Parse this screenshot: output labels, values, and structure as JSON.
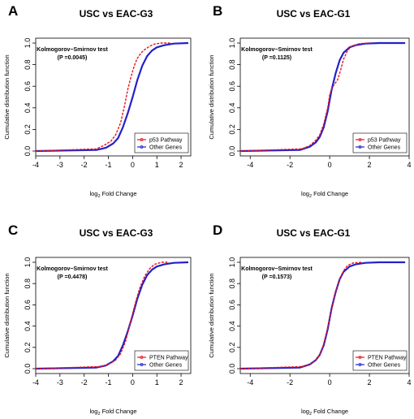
{
  "chart_data": [
    {
      "type": "line",
      "panel": "A",
      "title": "USC vs EAC-G3",
      "xlabel": "log",
      "xlabel_sub": "2",
      "xlabel_rest": " Fold Change",
      "ylabel": "Cumulative distribution function",
      "xlim": [
        -4,
        2.4
      ],
      "ylim": [
        0,
        1
      ],
      "xticks": [
        "-4",
        "-3",
        "-2",
        "-1",
        "0",
        "1",
        "2"
      ],
      "yticks": [
        "0.0",
        "0.2",
        "0.4",
        "0.6",
        "0.8",
        "1.0"
      ],
      "grid": false,
      "legend_position": "bottom-right",
      "annotation": [
        "Kolmogorov−Smirnov test",
        "(P =0.0045)"
      ],
      "series": [
        {
          "name": "p53 Pathway",
          "color": "#e8141c",
          "style": "dashed",
          "x": [
            -4,
            -1.5,
            -1.2,
            -0.9,
            -0.7,
            -0.5,
            -0.35,
            -0.2,
            -0.1,
            0,
            0.1,
            0.2,
            0.35,
            0.5,
            0.7,
            0.9,
            1.2,
            1.6
          ],
          "y": [
            0,
            0.02,
            0.05,
            0.09,
            0.15,
            0.26,
            0.4,
            0.57,
            0.66,
            0.74,
            0.81,
            0.86,
            0.91,
            0.94,
            0.97,
            0.99,
            1.0,
            1.0
          ]
        },
        {
          "name": "Other Genes",
          "color": "#2321c8",
          "style": "solid",
          "x": [
            -4,
            -1.5,
            -1.1,
            -0.8,
            -0.6,
            -0.4,
            -0.2,
            0,
            0.2,
            0.4,
            0.6,
            0.8,
            1.0,
            1.3,
            1.7,
            2.3
          ],
          "y": [
            0,
            0.01,
            0.03,
            0.07,
            0.12,
            0.22,
            0.35,
            0.5,
            0.66,
            0.79,
            0.88,
            0.93,
            0.96,
            0.98,
            0.995,
            1.0
          ]
        }
      ]
    },
    {
      "type": "line",
      "panel": "B",
      "title": "USC vs EAC-G1",
      "xlabel": "log",
      "xlabel_sub": "2",
      "xlabel_rest": " Fold Change",
      "ylabel": "Cumulative distribution function",
      "xlim": [
        -4.5,
        4
      ],
      "ylim": [
        0,
        1
      ],
      "xticks": [
        "-4",
        "-2",
        "0",
        "2",
        "4"
      ],
      "yticks": [
        "0.0",
        "0.2",
        "0.4",
        "0.6",
        "0.8",
        "1.0"
      ],
      "grid": false,
      "legend_position": "bottom-right",
      "annotation": [
        "Kolmogorov−Smirnov test",
        "(P =0.1125)"
      ],
      "series": [
        {
          "name": "p53 Pathway",
          "color": "#e8141c",
          "style": "dashed",
          "x": [
            -4.5,
            -1.4,
            -1.0,
            -0.7,
            -0.5,
            -0.3,
            -0.1,
            0,
            0.1,
            0.25,
            0.4,
            0.55,
            0.7,
            0.9,
            1.1,
            1.5,
            2.0
          ],
          "y": [
            0,
            0.02,
            0.05,
            0.1,
            0.15,
            0.25,
            0.4,
            0.52,
            0.58,
            0.62,
            0.66,
            0.75,
            0.85,
            0.93,
            0.97,
            0.995,
            1.0
          ]
        },
        {
          "name": "Other Genes",
          "color": "#2321c8",
          "style": "solid",
          "x": [
            -4.5,
            -1.5,
            -1.0,
            -0.7,
            -0.5,
            -0.3,
            -0.1,
            0,
            0.1,
            0.3,
            0.5,
            0.7,
            1.0,
            1.3,
            1.8,
            2.5,
            3.8
          ],
          "y": [
            0,
            0.01,
            0.04,
            0.08,
            0.13,
            0.22,
            0.37,
            0.47,
            0.57,
            0.72,
            0.84,
            0.91,
            0.96,
            0.98,
            0.995,
            1.0,
            1.0
          ]
        }
      ]
    },
    {
      "type": "line",
      "panel": "C",
      "title": "USC vs EAC-G3",
      "xlabel": "log",
      "xlabel_sub": "2",
      "xlabel_rest": " Fold Change",
      "ylabel": "Cumulative distribution function",
      "xlim": [
        -4,
        2.4
      ],
      "ylim": [
        0,
        1
      ],
      "xticks": [
        "-4",
        "-3",
        "-2",
        "-1",
        "0",
        "1",
        "2"
      ],
      "yticks": [
        "0.0",
        "0.2",
        "0.4",
        "0.6",
        "0.8",
        "1.0"
      ],
      "grid": false,
      "legend_position": "bottom-right",
      "annotation": [
        "Kolmogorov−Smirnov test",
        "(P =0.4478)"
      ],
      "series": [
        {
          "name": "PTEN Pathway",
          "color": "#e8141c",
          "style": "dashed",
          "x": [
            -4,
            -1.3,
            -1.0,
            -0.7,
            -0.5,
            -0.3,
            -0.15,
            0,
            0.15,
            0.3,
            0.5,
            0.7,
            0.9,
            1.2,
            1.5
          ],
          "y": [
            0,
            0.02,
            0.04,
            0.08,
            0.14,
            0.25,
            0.38,
            0.52,
            0.65,
            0.76,
            0.87,
            0.94,
            0.98,
            1.0,
            1.0
          ]
        },
        {
          "name": "Other Genes",
          "color": "#2321c8",
          "style": "solid",
          "x": [
            -4,
            -1.5,
            -1.1,
            -0.8,
            -0.6,
            -0.4,
            -0.2,
            0,
            0.2,
            0.4,
            0.6,
            0.8,
            1.0,
            1.3,
            1.7,
            2.3
          ],
          "y": [
            0,
            0.01,
            0.03,
            0.07,
            0.12,
            0.22,
            0.35,
            0.5,
            0.66,
            0.79,
            0.88,
            0.93,
            0.96,
            0.98,
            0.995,
            1.0
          ]
        }
      ]
    },
    {
      "type": "line",
      "panel": "D",
      "title": "USC vs EAC-G1",
      "xlabel": "log",
      "xlabel_sub": "2",
      "xlabel_rest": " Fold Change",
      "ylabel": "Cumulative distribution function",
      "xlim": [
        -4.5,
        4
      ],
      "ylim": [
        0,
        1
      ],
      "xticks": [
        "-4",
        "-2",
        "0",
        "2",
        "4"
      ],
      "yticks": [
        "0.0",
        "0.2",
        "0.4",
        "0.6",
        "0.8",
        "1.0"
      ],
      "grid": false,
      "legend_position": "bottom-right",
      "annotation": [
        "Kolmogorov−Smirnov test",
        "(P =0.1573)"
      ],
      "series": [
        {
          "name": "PTEN Pathway",
          "color": "#e8141c",
          "style": "dashed",
          "x": [
            -4.5,
            -1.3,
            -0.9,
            -0.6,
            -0.4,
            -0.2,
            0,
            0.15,
            0.3,
            0.5,
            0.7,
            0.9,
            1.2,
            1.6
          ],
          "y": [
            0,
            0.02,
            0.05,
            0.1,
            0.17,
            0.3,
            0.47,
            0.6,
            0.72,
            0.84,
            0.92,
            0.97,
            0.995,
            1.0
          ]
        },
        {
          "name": "Other Genes",
          "color": "#2321c8",
          "style": "solid",
          "x": [
            -4.5,
            -1.5,
            -1.0,
            -0.7,
            -0.5,
            -0.3,
            -0.1,
            0,
            0.1,
            0.3,
            0.5,
            0.7,
            1.0,
            1.3,
            1.8,
            2.5,
            3.8
          ],
          "y": [
            0,
            0.01,
            0.04,
            0.08,
            0.13,
            0.22,
            0.37,
            0.47,
            0.57,
            0.72,
            0.84,
            0.91,
            0.96,
            0.98,
            0.995,
            1.0,
            1.0
          ]
        }
      ]
    }
  ]
}
